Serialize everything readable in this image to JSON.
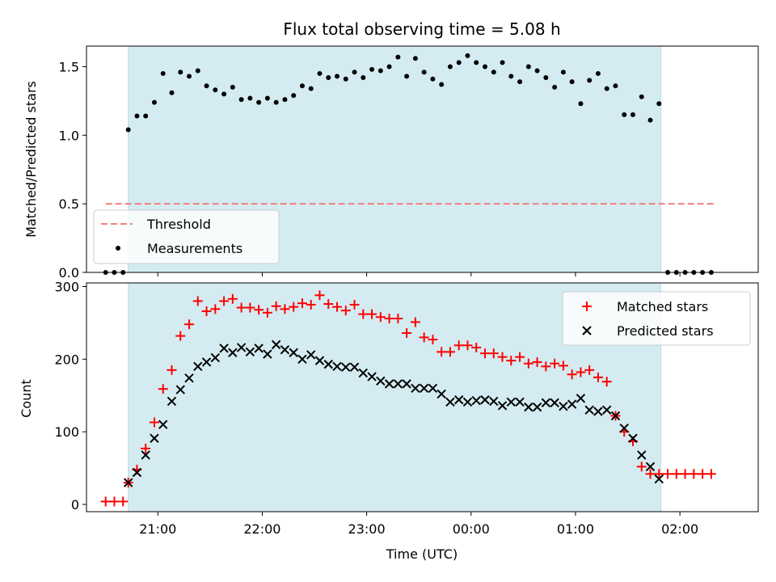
{
  "chart_data": [
    {
      "type": "scatter",
      "title": "Flux total observing time = 5.08 h",
      "xlabel": "",
      "ylabel": "Matched/Predicted stars",
      "ylim": [
        0,
        1.65
      ],
      "yticks": [
        0.0,
        0.5,
        1.0,
        1.5
      ],
      "ytick_labels": [
        "0.0",
        "0.5",
        "1.0",
        "1.5"
      ],
      "shaded_interval": [
        "20:43",
        "01:49"
      ],
      "shade_color": "#d4ecf1",
      "threshold": {
        "name": "Threshold",
        "value": 0.5,
        "x_start": "20:30",
        "x_end": "02:20",
        "color": "#f08080"
      },
      "legend": {
        "position": "lower-left",
        "entries": [
          "Threshold",
          "Measurements"
        ]
      },
      "series": [
        {
          "name": "Measurements",
          "marker": "dot",
          "color": "#000000",
          "x": [
            "20:30",
            "20:35",
            "20:40",
            "20:43",
            "20:48",
            "20:53",
            "20:58",
            "21:03",
            "21:08",
            "21:13",
            "21:18",
            "21:23",
            "21:28",
            "21:33",
            "21:38",
            "21:43",
            "21:48",
            "21:53",
            "21:58",
            "22:03",
            "22:08",
            "22:13",
            "22:18",
            "22:23",
            "22:28",
            "22:33",
            "22:38",
            "22:43",
            "22:48",
            "22:53",
            "22:58",
            "23:03",
            "23:08",
            "23:13",
            "23:18",
            "23:23",
            "23:28",
            "23:33",
            "23:38",
            "23:43",
            "23:48",
            "23:53",
            "23:58",
            "00:03",
            "00:08",
            "00:13",
            "00:18",
            "00:23",
            "00:28",
            "00:33",
            "00:38",
            "00:43",
            "00:48",
            "00:53",
            "00:58",
            "01:03",
            "01:08",
            "01:13",
            "01:18",
            "01:23",
            "01:28",
            "01:33",
            "01:38",
            "01:43",
            "01:48",
            "01:53",
            "01:58",
            "02:03",
            "02:08",
            "02:13",
            "02:18"
          ],
          "y": [
            0,
            0,
            0,
            1.04,
            1.14,
            1.14,
            1.24,
            1.45,
            1.31,
            1.46,
            1.43,
            1.47,
            1.36,
            1.33,
            1.3,
            1.35,
            1.26,
            1.27,
            1.24,
            1.27,
            1.24,
            1.26,
            1.29,
            1.36,
            1.34,
            1.45,
            1.42,
            1.43,
            1.41,
            1.46,
            1.42,
            1.48,
            1.47,
            1.5,
            1.57,
            1.43,
            1.56,
            1.46,
            1.41,
            1.37,
            1.5,
            1.53,
            1.58,
            1.53,
            1.5,
            1.46,
            1.53,
            1.43,
            1.39,
            1.5,
            1.47,
            1.42,
            1.35,
            1.46,
            1.39,
            1.23,
            1.4,
            1.45,
            1.34,
            1.36,
            1.15,
            1.15,
            1.28,
            1.11,
            1.23,
            0,
            0,
            0,
            0,
            0,
            0
          ]
        }
      ]
    },
    {
      "type": "scatter",
      "title": "",
      "xlabel": "Time (UTC)",
      "ylabel": "Count",
      "ylim": [
        -10,
        305
      ],
      "yticks": [
        0,
        100,
        200,
        300
      ],
      "ytick_labels": [
        "0",
        "100",
        "200",
        "300"
      ],
      "xticks": [
        "21:00",
        "22:00",
        "23:00",
        "00:00",
        "01:00",
        "02:00"
      ],
      "shaded_interval": [
        "20:43",
        "01:49"
      ],
      "shade_color": "#d4ecf1",
      "legend": {
        "position": "upper-right",
        "entries": [
          "Matched stars",
          "Predicted stars"
        ]
      },
      "series": [
        {
          "name": "Matched stars",
          "marker": "plus",
          "color": "#ff0000",
          "x": [
            "20:30",
            "20:35",
            "20:40",
            "20:43",
            "20:48",
            "20:53",
            "20:58",
            "21:03",
            "21:08",
            "21:13",
            "21:18",
            "21:23",
            "21:28",
            "21:33",
            "21:38",
            "21:43",
            "21:48",
            "21:53",
            "21:58",
            "22:03",
            "22:08",
            "22:13",
            "22:18",
            "22:23",
            "22:28",
            "22:33",
            "22:38",
            "22:43",
            "22:48",
            "22:53",
            "22:58",
            "23:03",
            "23:08",
            "23:13",
            "23:18",
            "23:23",
            "23:28",
            "23:33",
            "23:38",
            "23:43",
            "23:48",
            "23:53",
            "23:58",
            "00:03",
            "00:08",
            "00:13",
            "00:18",
            "00:23",
            "00:28",
            "00:33",
            "00:38",
            "00:43",
            "00:48",
            "00:53",
            "00:58",
            "01:03",
            "01:08",
            "01:13",
            "01:18",
            "01:23",
            "01:28",
            "01:33",
            "01:38",
            "01:43",
            "01:48",
            "01:53",
            "01:58",
            "02:03",
            "02:08",
            "02:13",
            "02:18"
          ],
          "y": [
            4,
            4,
            4,
            30,
            48,
            77,
            113,
            159,
            185,
            232,
            248,
            280,
            266,
            269,
            280,
            283,
            271,
            271,
            268,
            264,
            273,
            269,
            272,
            277,
            275,
            288,
            276,
            272,
            267,
            275,
            262,
            262,
            258,
            256,
            256,
            236,
            251,
            230,
            227,
            210,
            210,
            219,
            219,
            216,
            208,
            208,
            203,
            198,
            203,
            194,
            196,
            190,
            194,
            191,
            179,
            182,
            185,
            175,
            169,
            122,
            100,
            87,
            52,
            42,
            42,
            42,
            42,
            42,
            42,
            42,
            42
          ]
        },
        {
          "name": "Predicted stars",
          "marker": "x",
          "color": "#000000",
          "x": [
            "20:43",
            "20:48",
            "20:53",
            "20:58",
            "21:03",
            "21:08",
            "21:13",
            "21:18",
            "21:23",
            "21:28",
            "21:33",
            "21:38",
            "21:43",
            "21:48",
            "21:53",
            "21:58",
            "22:03",
            "22:08",
            "22:13",
            "22:18",
            "22:23",
            "22:28",
            "22:33",
            "22:38",
            "22:43",
            "22:48",
            "22:53",
            "22:58",
            "23:03",
            "23:08",
            "23:13",
            "23:18",
            "23:23",
            "23:28",
            "23:33",
            "23:38",
            "23:43",
            "23:48",
            "23:53",
            "23:58",
            "00:03",
            "00:08",
            "00:13",
            "00:18",
            "00:23",
            "00:28",
            "00:33",
            "00:38",
            "00:43",
            "00:48",
            "00:53",
            "00:58",
            "01:03",
            "01:08",
            "01:13",
            "01:18",
            "01:23",
            "01:28",
            "01:33",
            "01:38",
            "01:43",
            "01:48"
          ],
          "y": [
            30,
            44,
            68,
            91,
            110,
            142,
            158,
            174,
            190,
            196,
            202,
            215,
            209,
            216,
            210,
            215,
            207,
            220,
            213,
            209,
            200,
            206,
            198,
            193,
            190,
            189,
            189,
            181,
            176,
            170,
            166,
            166,
            166,
            160,
            160,
            160,
            152,
            141,
            144,
            141,
            143,
            144,
            142,
            136,
            141,
            141,
            134,
            134,
            140,
            140,
            135,
            138,
            146,
            130,
            128,
            130,
            122,
            105,
            91,
            68,
            52,
            35
          ]
        }
      ]
    }
  ]
}
